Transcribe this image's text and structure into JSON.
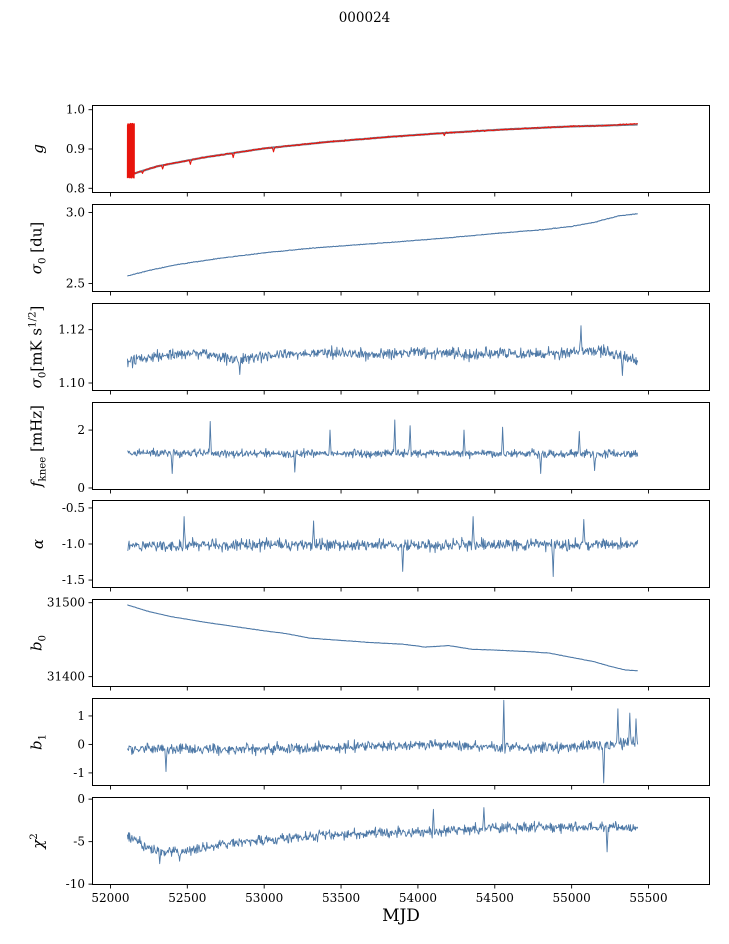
{
  "chart_data": {
    "type": "line",
    "title": "000024",
    "xlabel": "MJD",
    "x_range": [
      51880,
      55900
    ],
    "x_ticks": [
      52000,
      52500,
      53000,
      53500,
      54000,
      54500,
      55000,
      55500
    ],
    "x_tick_labels": [
      "52000",
      "52500",
      "53000",
      "53500",
      "54000",
      "54500",
      "55000",
      "55500"
    ],
    "data_x_range": [
      52110,
      55430
    ],
    "panels": [
      {
        "name": "g",
        "ylabel_parts": [
          {
            "text": "g",
            "italic": true
          }
        ],
        "ylim": [
          0.788,
          1.012
        ],
        "yticks": [
          1.0,
          0.9,
          0.8
        ],
        "ytick_labels": [
          "1.0",
          "0.9",
          "0.8"
        ],
        "series": [
          {
            "name": "smoothed-gain",
            "color": "#708090",
            "width": 2.2,
            "points": 420,
            "noise": 0.0005,
            "seed": 11,
            "anchors": [
              [
                52110,
                0.832
              ],
              [
                52300,
                0.8555
              ],
              [
                52600,
                0.878
              ],
              [
                53000,
                0.9015
              ],
              [
                53400,
                0.9175
              ],
              [
                53800,
                0.9305
              ],
              [
                54200,
                0.9415
              ],
              [
                54600,
                0.9505
              ],
              [
                55000,
                0.9575
              ],
              [
                55200,
                0.9595
              ],
              [
                55430,
                0.9625
              ]
            ]
          },
          {
            "name": "gain",
            "color": "#e8140c",
            "width": 1.1,
            "points": 800,
            "noise": 0.0022,
            "seed": 7,
            "anchors": [
              [
                52110,
                0.832
              ],
              [
                52300,
                0.8555
              ],
              [
                52600,
                0.878
              ],
              [
                53000,
                0.9015
              ],
              [
                53400,
                0.9175
              ],
              [
                53800,
                0.9305
              ],
              [
                54200,
                0.9415
              ],
              [
                54600,
                0.9505
              ],
              [
                55000,
                0.9575
              ],
              [
                55200,
                0.9595
              ],
              [
                55430,
                0.9645
              ]
            ],
            "burst": {
              "x0": 52110,
              "x1": 52155,
              "ymin": 0.828,
              "ymax": 0.963,
              "points": 44
            },
            "spikes": [
              [
                52210,
                0.838
              ],
              [
                52340,
                0.849
              ],
              [
                52520,
                0.861
              ],
              [
                52800,
                0.878
              ],
              [
                53060,
                0.893
              ],
              [
                54170,
                0.934
              ]
            ]
          }
        ]
      },
      {
        "name": "sigma0-du",
        "ylabel_parts": [
          {
            "text": "σ",
            "italic": true
          },
          {
            "text": "0",
            "sub": true
          },
          {
            "text": " [du]"
          }
        ],
        "ylim": [
          2.44,
          3.06
        ],
        "yticks": [
          3.0,
          2.5
        ],
        "ytick_labels": [
          "3.0",
          "2.5"
        ],
        "series": [
          {
            "name": "sigma0-du",
            "color": "#4e79a7",
            "width": 1.1,
            "points": 700,
            "noise": 0.0035,
            "seed": 21,
            "anchors": [
              [
                52110,
                2.553
              ],
              [
                52250,
                2.592
              ],
              [
                52450,
                2.636
              ],
              [
                52700,
                2.676
              ],
              [
                53000,
                2.716
              ],
              [
                53300,
                2.748
              ],
              [
                53600,
                2.772
              ],
              [
                53900,
                2.796
              ],
              [
                54200,
                2.822
              ],
              [
                54500,
                2.852
              ],
              [
                54800,
                2.878
              ],
              [
                55000,
                2.902
              ],
              [
                55150,
                2.932
              ],
              [
                55300,
                2.975
              ],
              [
                55430,
                2.992
              ]
            ]
          }
        ]
      },
      {
        "name": "sigma0-mK",
        "ylabel_parts": [
          {
            "text": "σ",
            "italic": true
          },
          {
            "text": "0",
            "sub": true
          },
          {
            "text": "[mK s"
          },
          {
            "text": "1/2",
            "sup": true
          },
          {
            "text": "]"
          }
        ],
        "ylim": [
          1.097,
          1.13
        ],
        "yticks": [
          1.12,
          1.1
        ],
        "ytick_labels": [
          "1.12",
          "1.10"
        ],
        "series": [
          {
            "name": "sigma0-mK",
            "color": "#4e79a7",
            "width": 0.9,
            "points": 900,
            "noise": 0.0032,
            "seed": 31,
            "anchors": [
              [
                52110,
                1.1075
              ],
              [
                52300,
                1.1105
              ],
              [
                52600,
                1.1115
              ],
              [
                52800,
                1.1085
              ],
              [
                53100,
                1.1105
              ],
              [
                53400,
                1.1115
              ],
              [
                53700,
                1.1105
              ],
              [
                54000,
                1.1115
              ],
              [
                54300,
                1.1105
              ],
              [
                54600,
                1.1115
              ],
              [
                54900,
                1.1105
              ],
              [
                55100,
                1.1125
              ],
              [
                55250,
                1.1115
              ],
              [
                55430,
                1.1085
              ]
            ],
            "spikes": [
              [
                55060,
                1.1215
              ],
              [
                52840,
                1.1032
              ],
              [
                55330,
                1.1028
              ]
            ]
          }
        ]
      },
      {
        "name": "f-knee",
        "ylabel_parts": [
          {
            "text": "f",
            "italic": true
          },
          {
            "text": "knee",
            "sub": true
          },
          {
            "text": " [mHz]"
          }
        ],
        "ylim": [
          -0.07,
          2.97
        ],
        "yticks": [
          2,
          0
        ],
        "ytick_labels": [
          "2",
          "0"
        ],
        "series": [
          {
            "name": "f-knee",
            "color": "#4e79a7",
            "width": 0.9,
            "points": 900,
            "noise": 0.21,
            "seed": 41,
            "anchors": [
              [
                52110,
                1.22
              ],
              [
                53000,
                1.18
              ],
              [
                54000,
                1.2
              ],
              [
                55430,
                1.18
              ]
            ],
            "spikes": [
              [
                52650,
                2.3
              ],
              [
                53430,
                2.0
              ],
              [
                53850,
                2.35
              ],
              [
                53950,
                2.15
              ],
              [
                54300,
                2.0
              ],
              [
                54550,
                2.1
              ],
              [
                55050,
                1.95
              ],
              [
                52400,
                0.5
              ],
              [
                53200,
                0.55
              ],
              [
                54800,
                0.5
              ],
              [
                55150,
                0.6
              ]
            ]
          }
        ]
      },
      {
        "name": "alpha",
        "ylabel_parts": [
          {
            "text": "α",
            "italic": true
          }
        ],
        "ylim": [
          -1.61,
          -0.39
        ],
        "yticks": [
          -0.5,
          -1.0,
          -1.5
        ],
        "ytick_labels": [
          "-0.5",
          "-1.0",
          "-1.5"
        ],
        "series": [
          {
            "name": "alpha",
            "color": "#4e79a7",
            "width": 0.9,
            "points": 900,
            "noise": 0.12,
            "seed": 51,
            "anchors": [
              [
                52110,
                -1.02
              ],
              [
                53000,
                -1.01
              ],
              [
                54000,
                -1.02
              ],
              [
                55430,
                -1.0
              ]
            ],
            "spikes": [
              [
                52480,
                -0.62
              ],
              [
                53320,
                -0.68
              ],
              [
                53900,
                -1.38
              ],
              [
                54360,
                -0.62
              ],
              [
                54880,
                -1.45
              ],
              [
                55080,
                -0.66
              ]
            ]
          }
        ]
      },
      {
        "name": "b0",
        "ylabel_parts": [
          {
            "text": "b",
            "italic": true
          },
          {
            "text": "0",
            "sub": true
          }
        ],
        "ylim": [
          31386,
          31505
        ],
        "yticks": [
          31500,
          31400
        ],
        "ytick_labels": [
          "31500",
          "31400"
        ],
        "series": [
          {
            "name": "b0",
            "color": "#4e79a7",
            "width": 1.1,
            "points": 420,
            "noise": 0.35,
            "seed": 61,
            "anchors": [
              [
                52110,
                31497
              ],
              [
                52250,
                31488
              ],
              [
                52400,
                31481
              ],
              [
                52600,
                31474
              ],
              [
                52800,
                31468
              ],
              [
                53000,
                31462
              ],
              [
                53150,
                31458
              ],
              [
                53300,
                31452
              ],
              [
                53500,
                31449
              ],
              [
                53700,
                31446
              ],
              [
                53900,
                31444
              ],
              [
                54050,
                31440
              ],
              [
                54200,
                31442
              ],
              [
                54350,
                31437
              ],
              [
                54500,
                31436
              ],
              [
                54700,
                31434
              ],
              [
                54850,
                31432
              ],
              [
                55000,
                31426
              ],
              [
                55150,
                31420
              ],
              [
                55250,
                31414
              ],
              [
                55350,
                31409
              ],
              [
                55430,
                31408
              ]
            ]
          }
        ]
      },
      {
        "name": "b1",
        "ylabel_parts": [
          {
            "text": "b",
            "italic": true
          },
          {
            "text": "1",
            "sub": true
          }
        ],
        "ylim": [
          -1.46,
          1.63
        ],
        "yticks": [
          1,
          0,
          -1
        ],
        "ytick_labels": [
          "1",
          "0",
          "-1"
        ],
        "series": [
          {
            "name": "b1",
            "color": "#4e79a7",
            "width": 0.9,
            "points": 900,
            "noise": 0.27,
            "seed": 71,
            "anchors": [
              [
                52110,
                -0.15
              ],
              [
                52600,
                -0.18
              ],
              [
                53200,
                -0.12
              ],
              [
                53800,
                -0.05
              ],
              [
                54100,
                0.0
              ],
              [
                54400,
                -0.08
              ],
              [
                54800,
                -0.12
              ],
              [
                55100,
                -0.05
              ],
              [
                55430,
                0.05
              ]
            ],
            "spikes": [
              [
                52360,
                -0.95
              ],
              [
                54560,
                1.55
              ],
              [
                55210,
                -1.35
              ],
              [
                55300,
                1.25
              ],
              [
                55380,
                1.1
              ],
              [
                55420,
                0.9
              ]
            ]
          }
        ]
      },
      {
        "name": "chi2",
        "ylabel_parts": [
          {
            "text": "χ",
            "italic": true
          },
          {
            "text": "2",
            "sup": true
          }
        ],
        "ylim": [
          -10.1,
          0.25
        ],
        "yticks": [
          0,
          -5,
          -10
        ],
        "ytick_labels": [
          "0",
          "-5",
          "-10"
        ],
        "series": [
          {
            "name": "chi2",
            "color": "#4e79a7",
            "width": 0.9,
            "points": 900,
            "noise": 0.9,
            "seed": 81,
            "anchors": [
              [
                52110,
                -4.2
              ],
              [
                52230,
                -5.6
              ],
              [
                52350,
                -6.3
              ],
              [
                52500,
                -6.1
              ],
              [
                52700,
                -5.4
              ],
              [
                52900,
                -5.0
              ],
              [
                53100,
                -4.6
              ],
              [
                53400,
                -4.3
              ],
              [
                53700,
                -4.0
              ],
              [
                54000,
                -3.9
              ],
              [
                54300,
                -3.6
              ],
              [
                54600,
                -3.4
              ],
              [
                54900,
                -3.3
              ],
              [
                55200,
                -3.3
              ],
              [
                55430,
                -3.5
              ]
            ],
            "spikes": [
              [
                52320,
                -7.6
              ],
              [
                52450,
                -7.3
              ],
              [
                54100,
                -1.2
              ],
              [
                54430,
                -1.0
              ],
              [
                55230,
                -6.2
              ]
            ]
          }
        ]
      }
    ]
  }
}
